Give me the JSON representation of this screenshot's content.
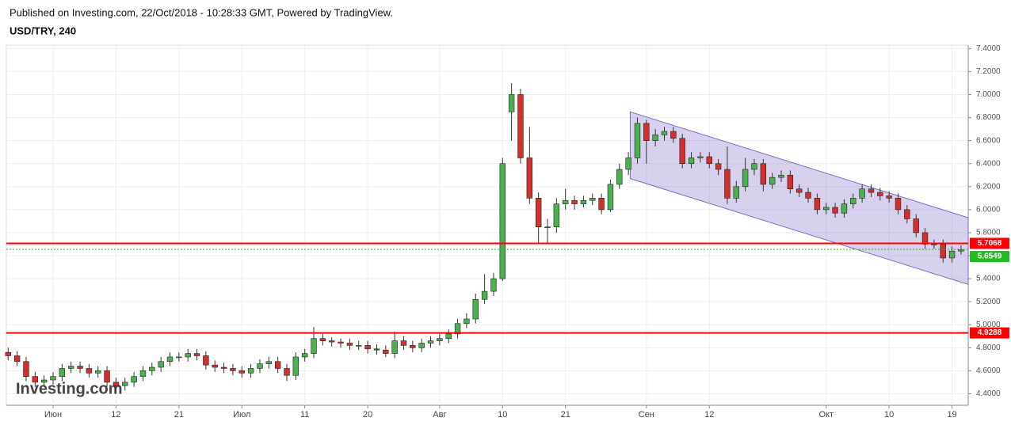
{
  "header": {
    "published": "Published on Investing.com, 22/Oct/2018 - 10:28:33 GMT, Powered by TradingView.",
    "symbol": "USD/TRY, 240"
  },
  "chart_data": {
    "type": "candlestick",
    "watermark": "Investing.com",
    "up_color": "#4caf50",
    "down_color": "#d32f2f",
    "wick_color": "#333333",
    "open": [
      4.76,
      4.73,
      4.68,
      4.55,
      4.5,
      4.52,
      4.55,
      4.62,
      4.64,
      4.62,
      4.58,
      4.6,
      4.5,
      4.47,
      4.5,
      4.55,
      4.6,
      4.63,
      4.68,
      4.72,
      4.72,
      4.75,
      4.73,
      4.65,
      4.63,
      4.62,
      4.6,
      4.58,
      4.62,
      4.66,
      4.68,
      4.62,
      4.56,
      4.72,
      4.75,
      4.88,
      4.86,
      4.85,
      4.84,
      4.82,
      4.82,
      4.79,
      4.78,
      4.75,
      4.86,
      4.82,
      4.8,
      4.84,
      4.86,
      4.88,
      4.92,
      5.01,
      5.05,
      5.22,
      5.29,
      5.4,
      6.85,
      7.0,
      6.45,
      6.1,
      5.85,
      5.85,
      6.05,
      6.08,
      6.05,
      6.08,
      6.1,
      6.0,
      6.22,
      6.35,
      6.45,
      6.75,
      6.6,
      6.65,
      6.68,
      6.62,
      6.4,
      6.45,
      6.46,
      6.4,
      6.35,
      6.1,
      6.2,
      6.35,
      6.4,
      6.22,
      6.28,
      6.3,
      6.18,
      6.15,
      6.1,
      6.0,
      6.02,
      5.97,
      6.05,
      6.1,
      6.18,
      6.15,
      6.12,
      6.1,
      6.0,
      5.92,
      5.8,
      5.7,
      5.7,
      5.58,
      5.64
    ],
    "high": [
      4.8,
      4.77,
      4.72,
      4.59,
      4.56,
      4.59,
      4.66,
      4.68,
      4.68,
      4.66,
      4.64,
      4.64,
      4.54,
      4.54,
      4.59,
      4.64,
      4.67,
      4.72,
      4.76,
      4.76,
      4.79,
      4.79,
      4.77,
      4.69,
      4.67,
      4.66,
      4.64,
      4.66,
      4.7,
      4.72,
      4.72,
      4.66,
      4.76,
      4.79,
      4.98,
      4.92,
      4.89,
      4.88,
      4.88,
      4.86,
      4.86,
      4.83,
      4.82,
      4.94,
      4.9,
      4.86,
      4.88,
      4.9,
      4.92,
      4.96,
      5.05,
      5.1,
      5.27,
      5.44,
      5.45,
      6.45,
      7.1,
      7.05,
      6.72,
      6.15,
      5.92,
      6.1,
      6.18,
      6.12,
      6.12,
      6.14,
      6.14,
      6.26,
      6.4,
      6.5,
      6.8,
      6.78,
      6.7,
      6.72,
      6.72,
      6.66,
      6.5,
      6.5,
      6.5,
      6.44,
      6.55,
      6.25,
      6.45,
      6.44,
      6.44,
      6.32,
      6.34,
      6.34,
      6.22,
      6.19,
      6.14,
      6.06,
      6.06,
      6.09,
      6.14,
      6.22,
      6.22,
      6.19,
      6.16,
      6.14,
      6.04,
      5.96,
      5.84,
      5.74,
      5.74,
      5.68,
      5.69
    ],
    "low": [
      4.69,
      4.64,
      4.51,
      4.46,
      4.46,
      4.48,
      4.51,
      4.58,
      4.58,
      4.54,
      4.54,
      4.46,
      4.43,
      4.43,
      4.46,
      4.51,
      4.56,
      4.59,
      4.64,
      4.68,
      4.68,
      4.69,
      4.61,
      4.59,
      4.58,
      4.56,
      4.54,
      4.54,
      4.58,
      4.62,
      4.58,
      4.51,
      4.52,
      4.68,
      4.71,
      4.82,
      4.81,
      4.8,
      4.78,
      4.78,
      4.75,
      4.74,
      4.72,
      4.71,
      4.78,
      4.76,
      4.76,
      4.8,
      4.82,
      4.84,
      4.88,
      4.97,
      5.01,
      5.18,
      5.25,
      5.38,
      6.6,
      6.4,
      6.05,
      5.7,
      5.7,
      5.8,
      6.0,
      6.0,
      6.02,
      6.04,
      5.96,
      5.98,
      6.18,
      6.3,
      6.4,
      6.4,
      6.55,
      6.6,
      6.58,
      6.36,
      6.36,
      6.41,
      6.36,
      6.3,
      6.05,
      6.06,
      6.16,
      6.3,
      6.16,
      6.18,
      6.24,
      6.14,
      6.11,
      6.06,
      5.96,
      5.96,
      5.93,
      5.93,
      6.01,
      6.06,
      6.11,
      6.08,
      6.06,
      5.96,
      5.88,
      5.76,
      5.66,
      5.66,
      5.54,
      5.54,
      5.61
    ],
    "close": [
      4.73,
      4.68,
      4.55,
      4.5,
      4.52,
      4.55,
      4.62,
      4.64,
      4.62,
      4.58,
      4.6,
      4.5,
      4.47,
      4.5,
      4.55,
      4.6,
      4.63,
      4.68,
      4.72,
      4.72,
      4.75,
      4.73,
      4.65,
      4.63,
      4.62,
      4.6,
      4.58,
      4.62,
      4.66,
      4.68,
      4.62,
      4.56,
      4.72,
      4.75,
      4.88,
      4.86,
      4.85,
      4.84,
      4.82,
      4.82,
      4.79,
      4.78,
      4.75,
      4.86,
      4.82,
      4.8,
      4.84,
      4.86,
      4.88,
      4.92,
      5.01,
      5.05,
      5.22,
      5.29,
      5.4,
      6.4,
      7.0,
      6.45,
      6.1,
      5.85,
      5.85,
      6.05,
      6.08,
      6.05,
      6.08,
      6.1,
      6.0,
      6.22,
      6.35,
      6.45,
      6.75,
      6.6,
      6.65,
      6.68,
      6.62,
      6.4,
      6.45,
      6.46,
      6.4,
      6.35,
      6.1,
      6.2,
      6.35,
      6.4,
      6.22,
      6.28,
      6.3,
      6.18,
      6.15,
      6.1,
      6.0,
      6.02,
      5.97,
      6.05,
      6.1,
      6.18,
      6.15,
      6.12,
      6.1,
      6.0,
      5.92,
      5.8,
      5.7,
      5.7,
      5.58,
      5.64,
      5.65
    ],
    "xlim": [
      -0.2,
      106.8
    ],
    "xticks": [
      {
        "value": 5,
        "label": "Июн"
      },
      {
        "value": 12,
        "label": "12"
      },
      {
        "value": 19,
        "label": "21"
      },
      {
        "value": 26,
        "label": "Июл"
      },
      {
        "value": 33,
        "label": "11"
      },
      {
        "value": 40,
        "label": "20"
      },
      {
        "value": 48,
        "label": "Авг"
      },
      {
        "value": 55,
        "label": "10"
      },
      {
        "value": 62,
        "label": "21"
      },
      {
        "value": 71,
        "label": "Сен"
      },
      {
        "value": 78,
        "label": "12"
      },
      {
        "value": 91,
        "label": "Окт"
      },
      {
        "value": 98,
        "label": "10"
      },
      {
        "value": 105,
        "label": "19"
      }
    ],
    "ylim": [
      4.3,
      7.43
    ],
    "yticks": [
      {
        "value": 4.4,
        "label": "4.4000"
      },
      {
        "value": 4.6,
        "label": "4.6000"
      },
      {
        "value": 4.8,
        "label": "4.8000"
      },
      {
        "value": 5.0,
        "label": "5.0000"
      },
      {
        "value": 5.2,
        "label": "5.2000"
      },
      {
        "value": 5.4,
        "label": "5.4000"
      },
      {
        "value": 5.6,
        "label": "5.6000"
      },
      {
        "value": 5.8,
        "label": "5.8000"
      },
      {
        "value": 6.0,
        "label": "6.0000"
      },
      {
        "value": 6.2,
        "label": "6.2000"
      },
      {
        "value": 6.4,
        "label": "6.4000"
      },
      {
        "value": 6.6,
        "label": "6.6000"
      },
      {
        "value": 6.8,
        "label": "6.8000"
      },
      {
        "value": 7.0,
        "label": "7.0000"
      },
      {
        "value": 7.2,
        "label": "7.2000"
      },
      {
        "value": 7.4,
        "label": "7.4000"
      }
    ],
    "grid": true,
    "hlines": [
      {
        "value": 5.7068,
        "color": "#ff0000"
      },
      {
        "value": 4.9288,
        "color": "#ff0000"
      }
    ],
    "last_price": {
      "value": 5.6549,
      "color": "#22bb22"
    },
    "channel": {
      "upper": [
        [
          69.2,
          6.85
        ],
        [
          106.8,
          5.93
        ]
      ],
      "lower": [
        [
          69.2,
          6.27
        ],
        [
          106.8,
          5.35
        ]
      ],
      "color": "#7b68c8"
    }
  }
}
